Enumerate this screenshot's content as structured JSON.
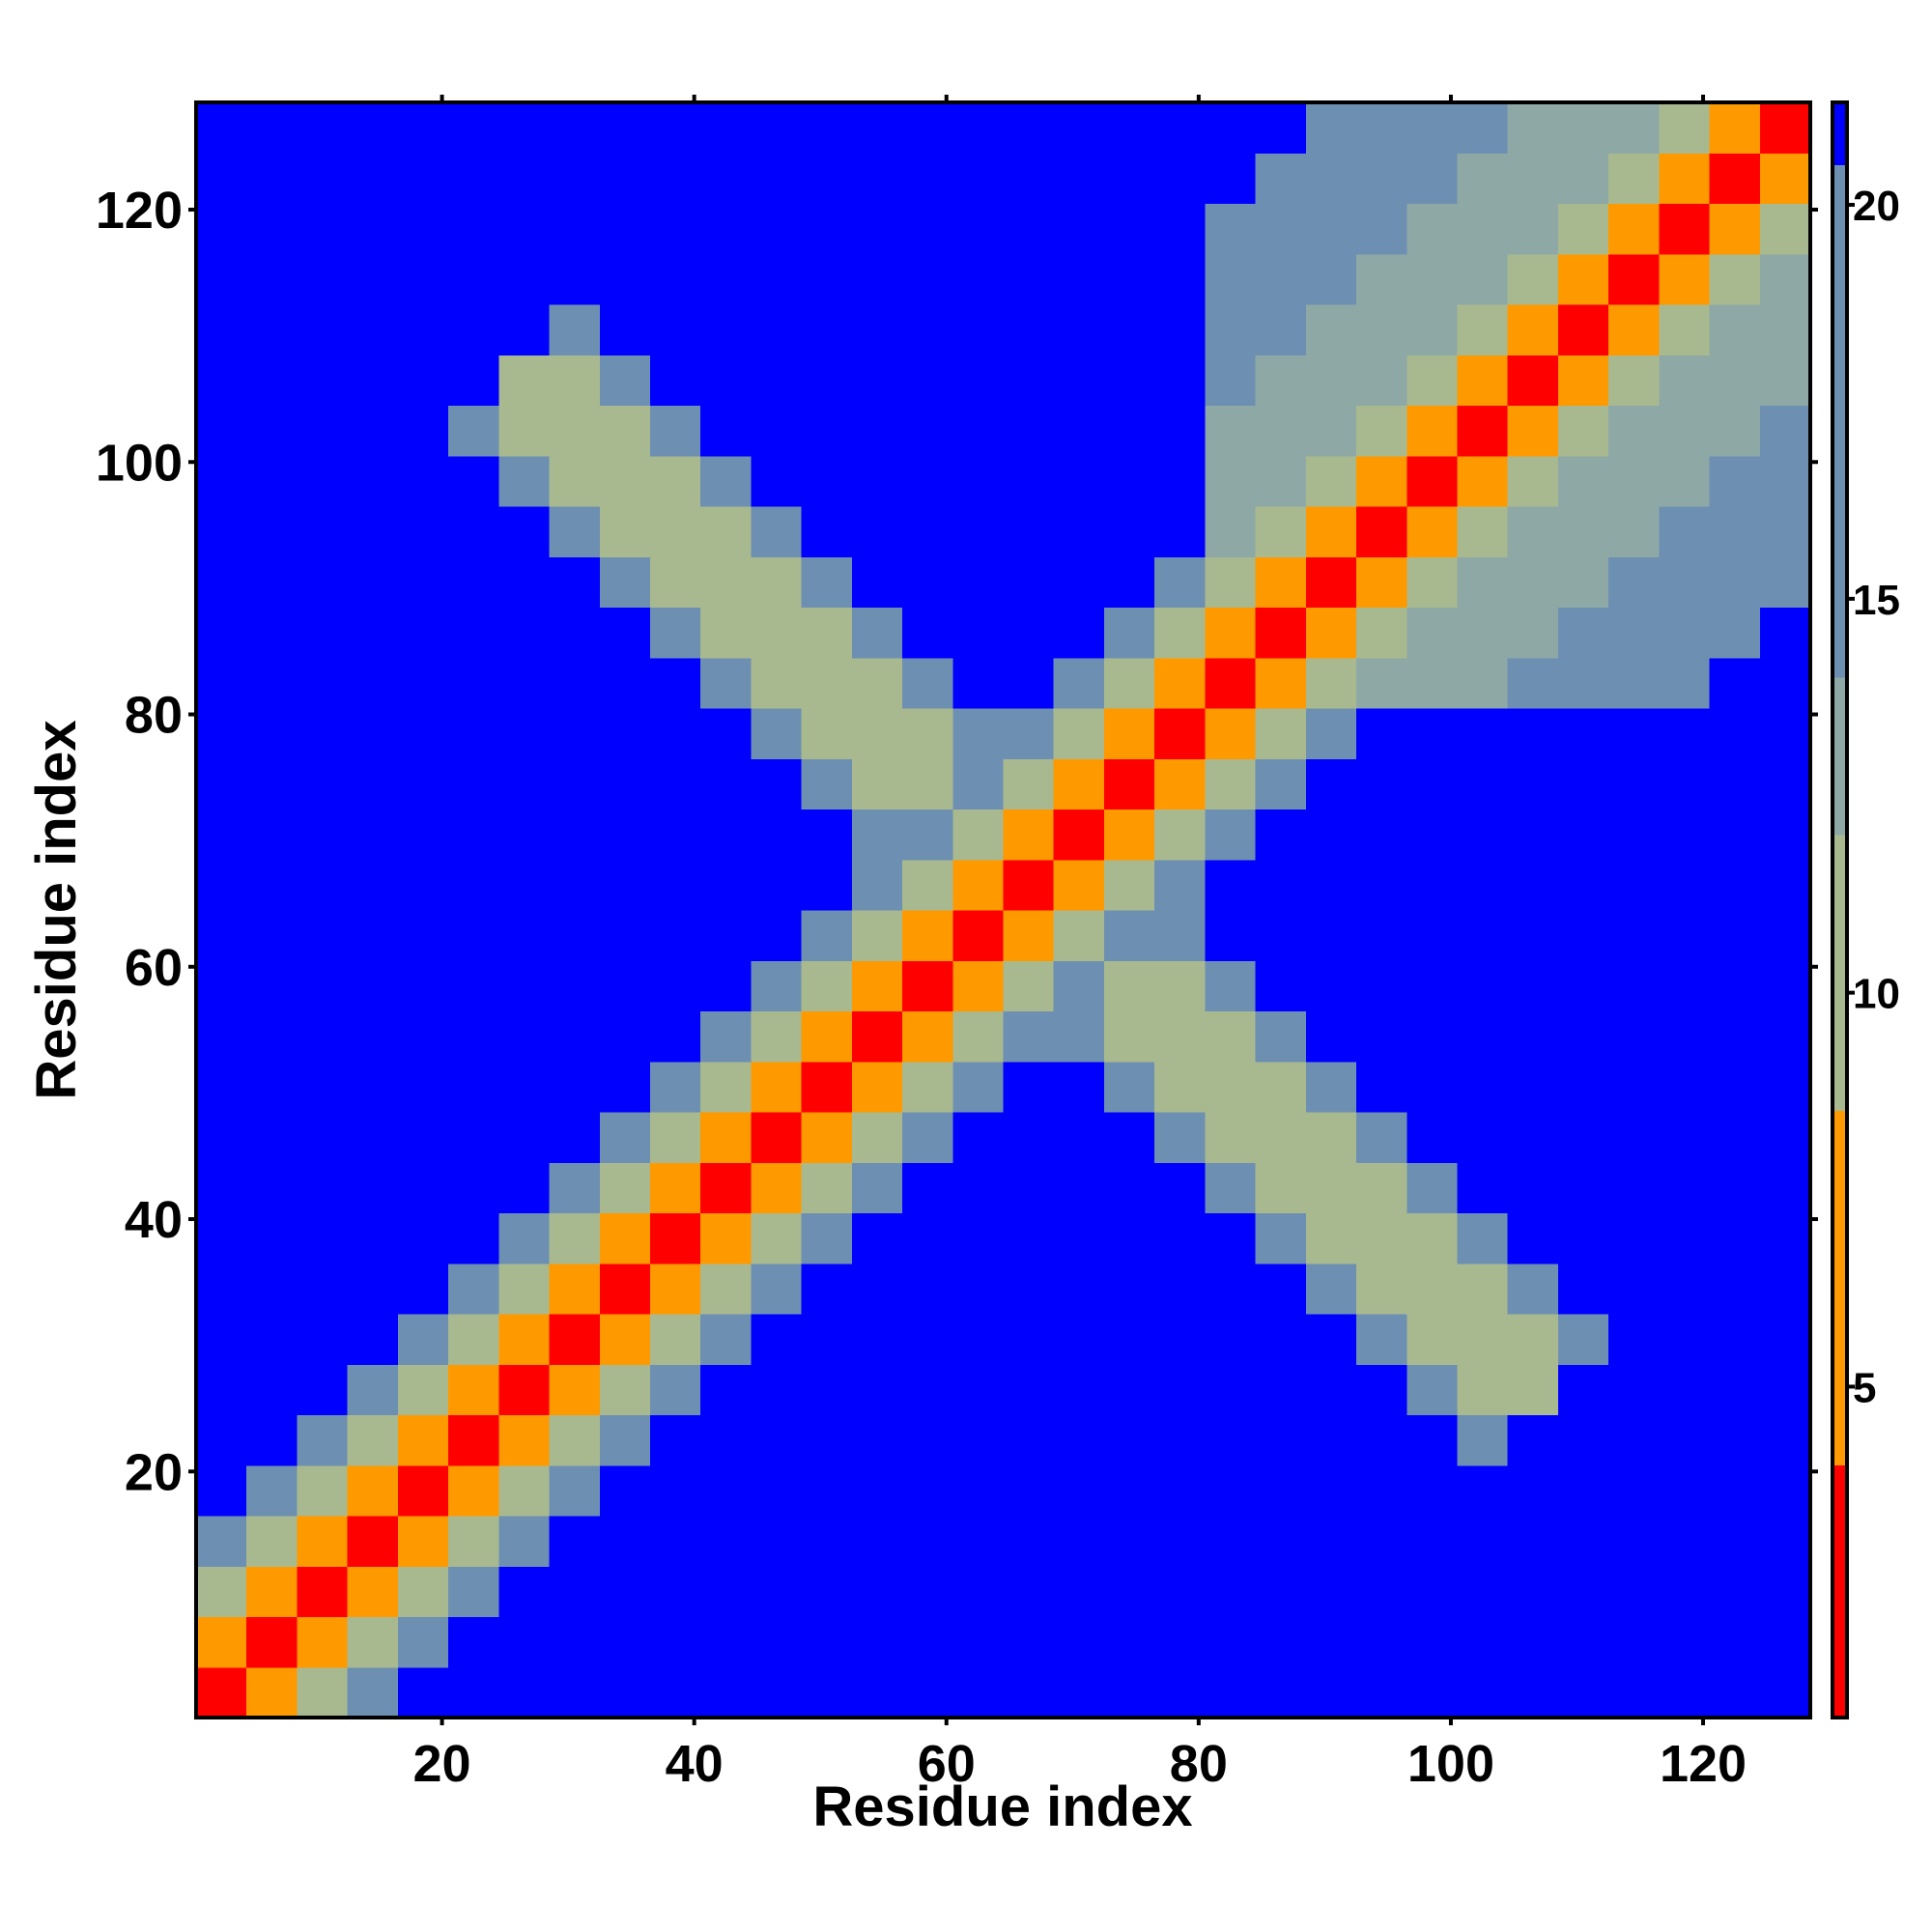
{
  "chart_data": {
    "type": "heatmap",
    "xlabel": "Residue index",
    "ylabel": "Residue index",
    "x_bins": [
      0.5,
      4.5,
      8.5,
      12.5,
      16.5,
      20.5,
      24.5,
      28.5,
      32.5,
      36.5,
      40.5,
      44.5,
      48.5,
      52.5,
      56.5,
      60.5,
      64.5,
      68.5,
      72.5,
      76.5,
      80.5,
      84.5,
      88.5,
      92.5,
      96.5,
      100.5,
      104.5,
      108.5,
      112.5,
      116.5,
      120.5,
      124.5,
      128.5
    ],
    "y_bins": [
      0.5,
      4.5,
      8.5,
      12.5,
      16.5,
      20.5,
      24.5,
      28.5,
      32.5,
      36.5,
      40.5,
      44.5,
      48.5,
      52.5,
      56.5,
      60.5,
      64.5,
      68.5,
      72.5,
      76.5,
      80.5,
      84.5,
      88.5,
      92.5,
      96.5,
      100.5,
      104.5,
      108.5,
      112.5,
      116.5,
      120.5,
      124.5,
      128.5
    ],
    "xlim": [
      0.5,
      128.5
    ],
    "ylim": [
      0.5,
      128.5
    ],
    "xticks": [
      20,
      40,
      60,
      80,
      100,
      120
    ],
    "yticks": [
      20,
      40,
      60,
      80,
      100,
      120
    ],
    "clim": [
      0.8,
      21.3
    ],
    "cticks": [
      5,
      10,
      15,
      20
    ],
    "color_bands": [
      [
        4,
        "#ff0000"
      ],
      [
        8.5,
        "#ff9900"
      ],
      [
        12,
        "#a9b98f"
      ],
      [
        14,
        "#8ea8a6"
      ],
      [
        20.5,
        "#6d90b2"
      ],
      [
        21.3,
        "#0000ff"
      ]
    ],
    "z": [
      [
        2,
        7,
        12,
        16,
        21,
        21,
        21,
        21,
        21,
        21,
        21,
        21,
        21,
        21,
        21,
        21,
        21,
        21,
        21,
        21,
        21,
        21,
        21,
        21,
        21,
        21,
        21,
        21,
        21,
        21,
        21,
        21
      ],
      [
        7,
        2,
        7,
        12,
        16,
        21,
        21,
        21,
        21,
        21,
        21,
        21,
        21,
        21,
        21,
        21,
        21,
        21,
        21,
        21,
        21,
        21,
        21,
        21,
        21,
        21,
        21,
        21,
        21,
        21,
        21,
        21
      ],
      [
        12,
        7,
        2,
        7,
        12,
        16,
        21,
        21,
        21,
        21,
        21,
        21,
        21,
        21,
        21,
        21,
        21,
        21,
        21,
        21,
        21,
        21,
        21,
        21,
        21,
        21,
        21,
        21,
        21,
        21,
        21,
        21
      ],
      [
        16,
        12,
        7,
        2,
        7,
        12,
        16,
        21,
        21,
        21,
        21,
        21,
        21,
        21,
        21,
        21,
        21,
        21,
        21,
        21,
        21,
        21,
        21,
        21,
        21,
        21,
        21,
        21,
        21,
        21,
        21,
        21
      ],
      [
        21,
        16,
        12,
        7,
        2,
        7,
        12,
        16,
        21,
        21,
        21,
        21,
        21,
        21,
        21,
        21,
        21,
        21,
        21,
        21,
        21,
        21,
        21,
        21,
        21,
        21,
        21,
        21,
        21,
        21,
        21,
        21
      ],
      [
        21,
        21,
        16,
        12,
        7,
        2,
        7,
        12,
        16,
        21,
        21,
        21,
        21,
        21,
        21,
        21,
        21,
        21,
        21,
        21,
        21,
        21,
        21,
        21,
        21,
        16,
        21,
        21,
        21,
        21,
        21,
        21
      ],
      [
        21,
        21,
        21,
        16,
        12,
        7,
        2,
        7,
        12,
        16,
        21,
        21,
        21,
        21,
        21,
        21,
        21,
        21,
        21,
        21,
        21,
        21,
        21,
        21,
        16,
        11,
        11,
        21,
        21,
        21,
        21,
        21
      ],
      [
        21,
        21,
        21,
        21,
        16,
        12,
        7,
        2,
        7,
        12,
        16,
        21,
        21,
        21,
        21,
        21,
        21,
        21,
        21,
        21,
        21,
        21,
        21,
        16,
        11,
        11,
        11,
        16,
        21,
        21,
        21,
        21
      ],
      [
        21,
        21,
        21,
        21,
        21,
        16,
        12,
        7,
        2,
        7,
        12,
        16,
        21,
        21,
        21,
        21,
        21,
        21,
        21,
        21,
        21,
        21,
        16,
        11,
        11,
        11,
        16,
        21,
        21,
        21,
        21,
        21
      ],
      [
        21,
        21,
        21,
        21,
        21,
        21,
        16,
        12,
        7,
        2,
        7,
        12,
        16,
        21,
        21,
        21,
        21,
        21,
        21,
        21,
        21,
        16,
        11,
        11,
        11,
        16,
        21,
        21,
        21,
        21,
        21,
        21
      ],
      [
        21,
        21,
        21,
        21,
        21,
        21,
        21,
        16,
        12,
        7,
        2,
        7,
        12,
        16,
        21,
        21,
        21,
        21,
        21,
        21,
        16,
        11,
        11,
        11,
        16,
        21,
        21,
        21,
        21,
        21,
        21,
        21
      ],
      [
        21,
        21,
        21,
        21,
        21,
        21,
        21,
        21,
        16,
        12,
        7,
        2,
        7,
        12,
        16,
        21,
        21,
        21,
        21,
        16,
        11,
        11,
        11,
        16,
        21,
        21,
        21,
        21,
        21,
        21,
        21,
        21
      ],
      [
        21,
        21,
        21,
        21,
        21,
        21,
        21,
        21,
        21,
        16,
        12,
        7,
        2,
        7,
        12,
        16,
        21,
        21,
        16,
        11,
        11,
        11,
        16,
        21,
        21,
        21,
        21,
        21,
        21,
        21,
        21,
        21
      ],
      [
        21,
        21,
        21,
        21,
        21,
        21,
        21,
        21,
        21,
        21,
        16,
        12,
        7,
        2,
        7,
        12,
        16,
        16,
        11,
        11,
        11,
        16,
        21,
        21,
        21,
        21,
        21,
        21,
        21,
        21,
        21,
        21
      ],
      [
        21,
        21,
        21,
        21,
        21,
        21,
        21,
        21,
        21,
        21,
        21,
        16,
        12,
        7,
        2,
        7,
        12,
        16,
        11,
        11,
        16,
        21,
        21,
        21,
        21,
        21,
        21,
        21,
        21,
        21,
        21,
        21
      ],
      [
        21,
        21,
        21,
        21,
        21,
        21,
        21,
        21,
        21,
        21,
        21,
        21,
        16,
        12,
        7,
        2,
        7,
        12,
        16,
        16,
        21,
        21,
        21,
        21,
        21,
        21,
        21,
        21,
        21,
        21,
        21,
        21
      ],
      [
        21,
        21,
        21,
        21,
        21,
        21,
        21,
        21,
        21,
        21,
        21,
        21,
        21,
        16,
        12,
        7,
        2,
        7,
        12,
        16,
        21,
        21,
        21,
        21,
        21,
        21,
        21,
        21,
        21,
        21,
        21,
        21
      ],
      [
        21,
        21,
        21,
        21,
        21,
        21,
        21,
        21,
        21,
        21,
        21,
        21,
        21,
        16,
        16,
        12,
        7,
        2,
        7,
        12,
        16,
        21,
        21,
        21,
        21,
        21,
        21,
        21,
        21,
        21,
        21,
        21
      ],
      [
        21,
        21,
        21,
        21,
        21,
        21,
        21,
        21,
        21,
        21,
        21,
        21,
        16,
        11,
        11,
        16,
        12,
        7,
        2,
        7,
        12,
        16,
        21,
        21,
        21,
        21,
        21,
        21,
        21,
        21,
        21,
        21
      ],
      [
        21,
        21,
        21,
        21,
        21,
        21,
        21,
        21,
        21,
        21,
        21,
        16,
        11,
        11,
        11,
        16,
        16,
        12,
        7,
        2,
        7,
        12,
        16,
        21,
        21,
        21,
        21,
        21,
        21,
        21,
        21,
        21
      ],
      [
        21,
        21,
        21,
        21,
        21,
        21,
        21,
        21,
        21,
        21,
        16,
        11,
        11,
        11,
        16,
        21,
        21,
        16,
        12,
        7,
        2,
        7,
        10,
        13,
        13,
        13,
        16,
        16,
        16,
        16,
        21,
        21
      ],
      [
        21,
        21,
        21,
        21,
        21,
        21,
        21,
        21,
        21,
        16,
        11,
        11,
        11,
        16,
        21,
        21,
        21,
        21,
        16,
        12,
        7,
        2,
        7,
        10,
        13,
        13,
        13,
        16,
        16,
        16,
        16,
        21
      ],
      [
        21,
        21,
        21,
        21,
        21,
        21,
        21,
        21,
        16,
        11,
        11,
        11,
        16,
        21,
        21,
        21,
        21,
        21,
        21,
        16,
        10,
        7,
        2,
        7,
        10,
        13,
        13,
        13,
        16,
        16,
        16,
        16
      ],
      [
        21,
        21,
        21,
        21,
        21,
        21,
        21,
        16,
        11,
        11,
        11,
        16,
        21,
        21,
        21,
        21,
        21,
        21,
        21,
        21,
        13,
        10,
        7,
        2,
        7,
        10,
        13,
        13,
        13,
        16,
        16,
        16
      ],
      [
        21,
        21,
        21,
        21,
        21,
        21,
        16,
        11,
        11,
        11,
        16,
        21,
        21,
        21,
        21,
        21,
        21,
        21,
        21,
        21,
        13,
        13,
        10,
        7,
        2,
        7,
        10,
        13,
        13,
        13,
        16,
        16
      ],
      [
        21,
        21,
        21,
        21,
        21,
        16,
        11,
        11,
        11,
        16,
        21,
        21,
        21,
        21,
        21,
        21,
        21,
        21,
        21,
        21,
        13,
        13,
        13,
        10,
        7,
        2,
        7,
        10,
        13,
        13,
        13,
        16
      ],
      [
        21,
        21,
        21,
        21,
        21,
        21,
        11,
        11,
        16,
        21,
        21,
        21,
        21,
        21,
        21,
        21,
        21,
        21,
        21,
        21,
        16,
        13,
        13,
        13,
        10,
        7,
        2,
        7,
        10,
        13,
        13,
        13
      ],
      [
        21,
        21,
        21,
        21,
        21,
        21,
        21,
        16,
        21,
        21,
        21,
        21,
        21,
        21,
        21,
        21,
        21,
        21,
        21,
        21,
        16,
        16,
        13,
        13,
        13,
        10,
        7,
        2,
        7,
        10,
        13,
        13
      ],
      [
        21,
        21,
        21,
        21,
        21,
        21,
        21,
        21,
        21,
        21,
        21,
        21,
        21,
        21,
        21,
        21,
        21,
        21,
        21,
        21,
        16,
        16,
        16,
        13,
        13,
        13,
        10,
        7,
        2,
        7,
        10,
        13
      ],
      [
        21,
        21,
        21,
        21,
        21,
        21,
        21,
        21,
        21,
        21,
        21,
        21,
        21,
        21,
        21,
        21,
        21,
        21,
        21,
        21,
        16,
        16,
        16,
        16,
        13,
        13,
        13,
        10,
        7,
        2,
        7,
        10
      ],
      [
        21,
        21,
        21,
        21,
        21,
        21,
        21,
        21,
        21,
        21,
        21,
        21,
        21,
        21,
        21,
        21,
        21,
        21,
        21,
        21,
        21,
        16,
        16,
        16,
        16,
        13,
        13,
        13,
        10,
        7,
        2,
        7
      ],
      [
        21,
        21,
        21,
        21,
        21,
        21,
        21,
        21,
        21,
        21,
        21,
        21,
        21,
        21,
        21,
        21,
        21,
        21,
        21,
        21,
        21,
        21,
        16,
        16,
        16,
        16,
        13,
        13,
        13,
        10,
        7,
        2
      ]
    ]
  }
}
